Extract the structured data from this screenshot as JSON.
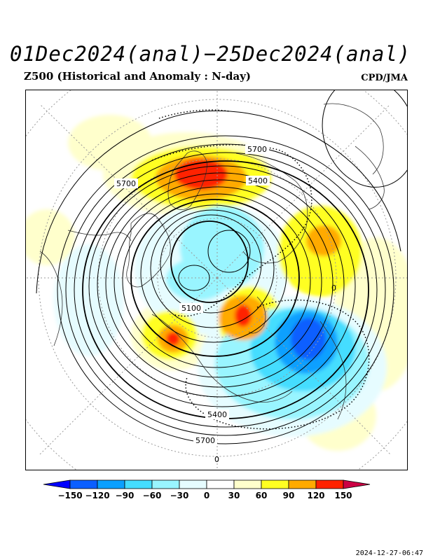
{
  "title": "01Dec2024(anal)−25Dec2024(anal)",
  "subtitle": "Z500 (Historical and Anomaly : N-day)",
  "source": "CPD/JMA",
  "contour_labels": [
    "5700",
    "5700",
    "5400",
    "5100",
    "5400",
    "5700",
    "0",
    "0"
  ],
  "colorbar": {
    "labels": [
      "−150",
      "−120",
      "−90",
      "−60",
      "−30",
      "0",
      "30",
      "60",
      "90",
      "120",
      "150"
    ],
    "colors": [
      "#0000ff",
      "#0a5fff",
      "#0aa0ff",
      "#44ddff",
      "#99f5ff",
      "#e6fcff",
      "#ffffff",
      "#ffffcc",
      "#ffff22",
      "#ffaa00",
      "#ff2200",
      "#cc0044"
    ]
  },
  "anomaly_colors": {
    "pos1": "#ffffcc",
    "pos2": "#ffff22",
    "pos3": "#ffaa00",
    "pos4": "#ff2200",
    "neg1": "#e6fcff",
    "neg2": "#99f5ff",
    "neg3": "#44ddff",
    "neg4": "#0aa0ff",
    "neg5": "#0a5fff",
    "neg6": "#0000ff"
  },
  "timestamp": "2024-12-27-06:47"
}
